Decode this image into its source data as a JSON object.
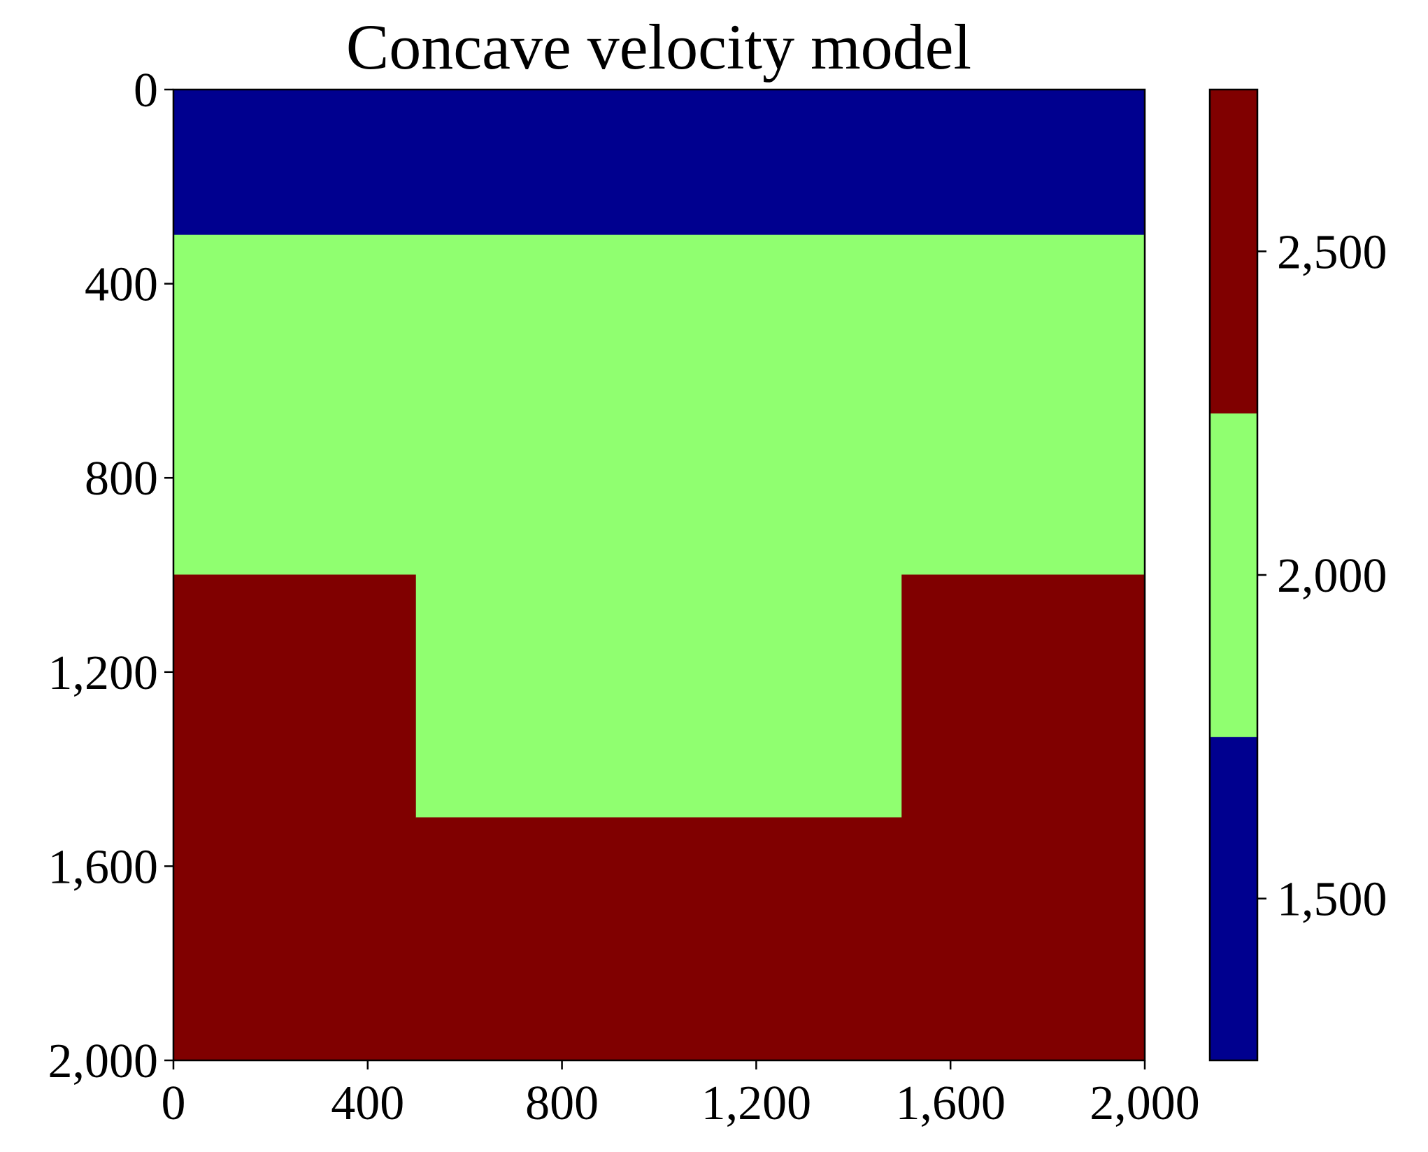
{
  "chart_data": {
    "type": "heatmap",
    "title": "Concave velocity model",
    "xlabel": "",
    "ylabel": "",
    "xlim": [
      0,
      2000
    ],
    "ylim": [
      0,
      2000
    ],
    "y_inverted": true,
    "x_ticks": [
      0,
      400,
      800,
      1200,
      1600,
      2000
    ],
    "x_tick_labels": [
      "0",
      "400",
      "800",
      "1,200",
      "1,600",
      "2,000"
    ],
    "y_ticks": [
      0,
      400,
      800,
      1200,
      1600,
      2000
    ],
    "y_tick_labels": [
      "0",
      "400",
      "800",
      "1,200",
      "1,600",
      "2,000"
    ],
    "regions": [
      {
        "name": "top-layer",
        "velocity": 1500,
        "x": [
          0,
          2000
        ],
        "y": [
          0,
          300
        ]
      },
      {
        "name": "middle-layer",
        "velocity": 2000,
        "x": [
          0,
          2000
        ],
        "y": [
          300,
          1000
        ]
      },
      {
        "name": "bottom-left-block",
        "velocity": 2500,
        "x": [
          0,
          500
        ],
        "y": [
          1000,
          2000
        ]
      },
      {
        "name": "concave-infill",
        "velocity": 2000,
        "x": [
          500,
          1500
        ],
        "y": [
          1000,
          1500
        ]
      },
      {
        "name": "bottom-right-block",
        "velocity": 2500,
        "x": [
          1500,
          2000
        ],
        "y": [
          1000,
          2000
        ]
      },
      {
        "name": "bottom-base",
        "velocity": 2500,
        "x": [
          500,
          1500
        ],
        "y": [
          1500,
          2000
        ]
      }
    ],
    "colorbar": {
      "range": [
        1250,
        2750
      ],
      "levels": [
        {
          "from": 1250,
          "to": 1750,
          "velocity": 1500,
          "color": "#00008f"
        },
        {
          "from": 1750,
          "to": 2250,
          "velocity": 2000,
          "color": "#90ff70"
        },
        {
          "from": 2250,
          "to": 2750,
          "velocity": 2500,
          "color": "#800000"
        }
      ],
      "ticks": [
        1500,
        2000,
        2500
      ],
      "tick_labels": [
        "1,500",
        "2,000",
        "2,500"
      ]
    },
    "colors": {
      "1500": "#00008f",
      "2000": "#90ff70",
      "2500": "#800000"
    }
  }
}
